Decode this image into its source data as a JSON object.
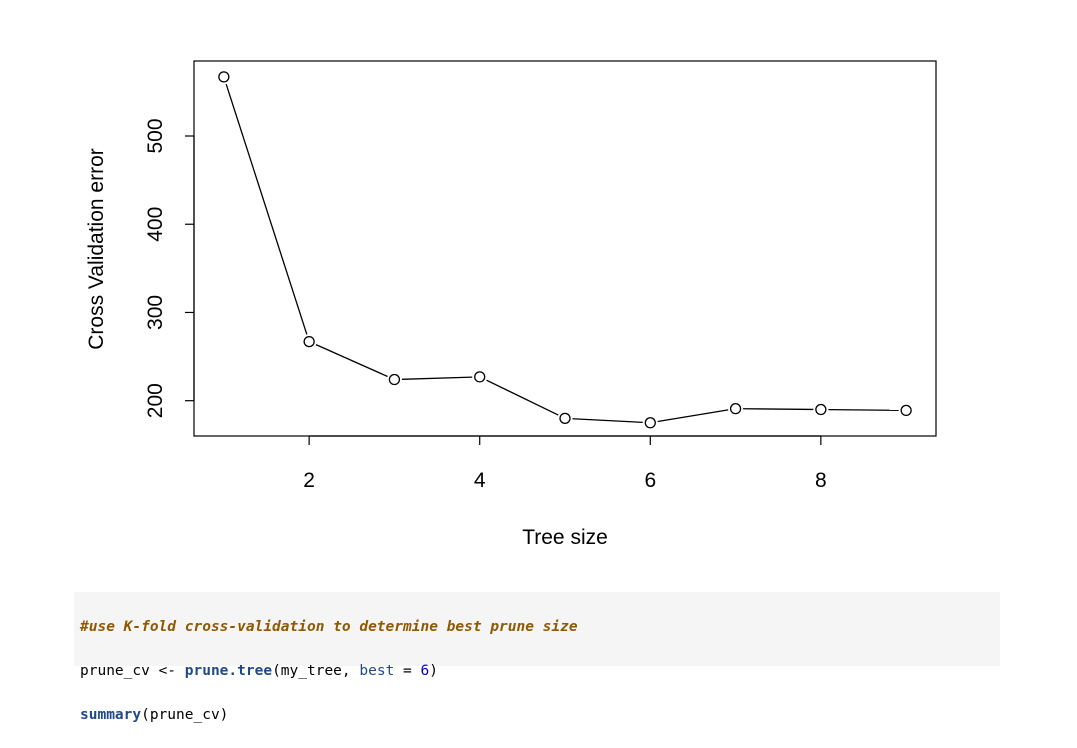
{
  "chart_data": {
    "type": "line",
    "title": "",
    "xlabel": "Tree size",
    "ylabel": "Cross Validation error",
    "x": [
      1,
      2,
      3,
      4,
      5,
      6,
      7,
      8,
      9
    ],
    "series": [
      {
        "values": [
          567,
          267,
          224,
          227,
          180,
          175,
          191,
          190,
          189
        ]
      }
    ],
    "xlim": [
      0.65,
      9.35
    ],
    "ylim": [
      160,
      585
    ],
    "xticks": [
      2,
      4,
      6,
      8
    ],
    "yticks": [
      200,
      300,
      400,
      500
    ],
    "marker": "open-circle",
    "grid": false,
    "legend": "none"
  },
  "code": {
    "line1_comment": "#use K-fold cross-validation to determine best prune size",
    "line2_var": "prune_cv <- ",
    "line2_fn": "prune.tree",
    "line2_open": "(my_tree, ",
    "line2_arg": "best",
    "line2_eq": " = ",
    "line2_num": "6",
    "line2_close": ")",
    "line3_fn": "summary",
    "line3_rest": "(prune_cv)"
  }
}
